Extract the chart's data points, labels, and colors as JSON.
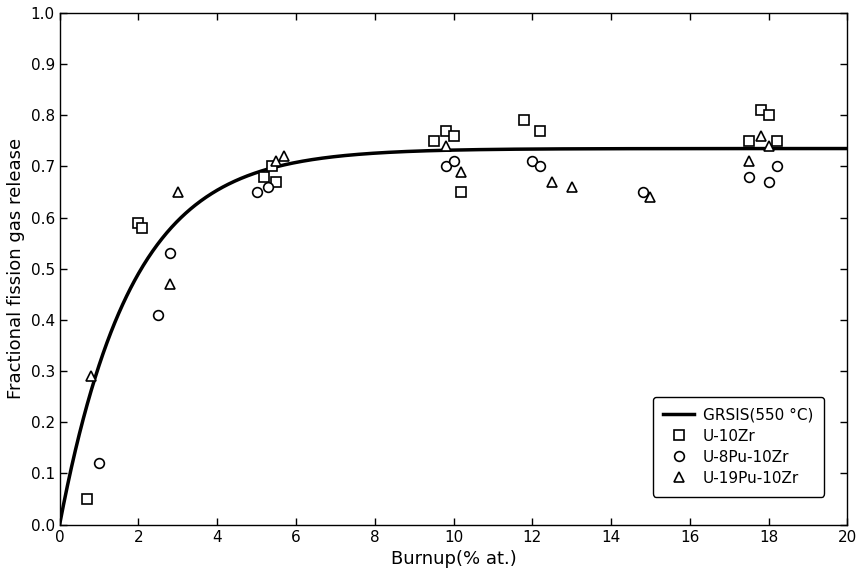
{
  "title": "",
  "xlabel": "Burnup(% at.)",
  "ylabel": "Fractional fission gas release",
  "xlim": [
    0,
    20
  ],
  "ylim": [
    0.0,
    1.0
  ],
  "xticks": [
    0,
    2,
    4,
    6,
    8,
    10,
    12,
    14,
    16,
    18,
    20
  ],
  "yticks": [
    0.0,
    0.1,
    0.2,
    0.3,
    0.4,
    0.5,
    0.6,
    0.7,
    0.8,
    0.9,
    1.0
  ],
  "curve_label": "GRSIS(550 °C)",
  "curve_color": "#000000",
  "curve_lw": 2.5,
  "curve_A": 0.735,
  "curve_k": 0.55,
  "U10Zr": {
    "label": "U-10Zr",
    "marker": "s",
    "color": "#000000",
    "facecolor": "white",
    "markersize": 7,
    "markeredgewidth": 1.2,
    "x": [
      0.7,
      2.0,
      2.1,
      5.2,
      5.4,
      5.5,
      9.5,
      9.8,
      10.0,
      10.2,
      11.8,
      12.2,
      17.5,
      17.8,
      18.0,
      18.2
    ],
    "y": [
      0.05,
      0.59,
      0.58,
      0.68,
      0.7,
      0.67,
      0.75,
      0.77,
      0.76,
      0.65,
      0.79,
      0.77,
      0.75,
      0.81,
      0.8,
      0.75
    ]
  },
  "U8Pu10Zr": {
    "label": "U-8Pu-10Zr",
    "marker": "o",
    "color": "#000000",
    "facecolor": "white",
    "markersize": 7,
    "markeredgewidth": 1.2,
    "x": [
      1.0,
      2.5,
      2.8,
      5.0,
      5.3,
      9.8,
      10.0,
      12.0,
      12.2,
      14.8,
      17.5,
      18.0,
      18.2
    ],
    "y": [
      0.12,
      0.41,
      0.53,
      0.65,
      0.66,
      0.7,
      0.71,
      0.71,
      0.7,
      0.65,
      0.68,
      0.67,
      0.7
    ]
  },
  "U19Pu10Zr": {
    "label": "U-19Pu-10Zr",
    "marker": "^",
    "color": "#000000",
    "facecolor": "white",
    "markersize": 7,
    "markeredgewidth": 1.2,
    "x": [
      0.8,
      2.8,
      3.0,
      5.5,
      5.7,
      9.8,
      10.2,
      12.5,
      13.0,
      15.0,
      17.5,
      17.8,
      18.0
    ],
    "y": [
      0.29,
      0.47,
      0.65,
      0.71,
      0.72,
      0.74,
      0.69,
      0.67,
      0.66,
      0.64,
      0.71,
      0.76,
      0.74
    ]
  },
  "background_color": "#ffffff",
  "xlabel_fontsize": 13,
  "ylabel_fontsize": 13,
  "tick_labelsize": 11
}
